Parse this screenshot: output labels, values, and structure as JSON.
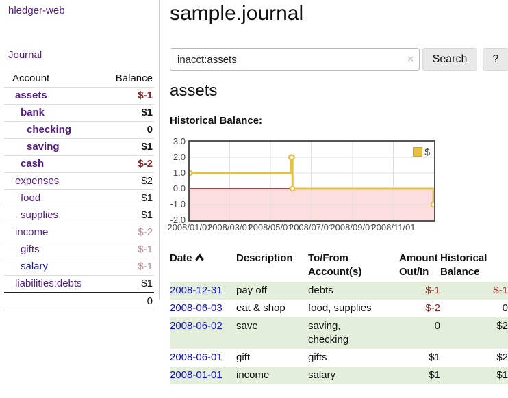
{
  "app": {
    "brand": "hledger-web"
  },
  "sidebar": {
    "nav": {
      "journal": "Journal"
    },
    "table": {
      "header": {
        "account": "Account",
        "balance": "Balance"
      },
      "rows": [
        {
          "name": "assets",
          "balance": "$-1"
        },
        {
          "name": "bank",
          "balance": "$1"
        },
        {
          "name": "checking",
          "balance": "0"
        },
        {
          "name": "saving",
          "balance": "$1"
        },
        {
          "name": "cash",
          "balance": "$-2"
        },
        {
          "name": "expenses",
          "balance": "$2"
        },
        {
          "name": "food",
          "balance": "$1"
        },
        {
          "name": "supplies",
          "balance": "$1"
        },
        {
          "name": "income",
          "balance": "$-2"
        },
        {
          "name": "gifts",
          "balance": "$-1"
        },
        {
          "name": "salary",
          "balance": "$-1"
        },
        {
          "name": "liabilities:debts",
          "balance": "$1"
        }
      ],
      "total": "0"
    }
  },
  "main": {
    "title": "sample.journal",
    "search": {
      "value": "inacct:assets",
      "clear": "×",
      "search_button": "Search",
      "help_button": "?"
    },
    "heading": "assets",
    "chart_label": "Historical Balance:"
  },
  "chart_data": {
    "type": "line",
    "step": true,
    "title": "Historical Balance",
    "x_range": [
      "2008-01-01",
      "2009-01-01"
    ],
    "ylim": [
      -2.0,
      3.0
    ],
    "yticks": [
      {
        "value": 3,
        "label": "3.0"
      },
      {
        "value": 2,
        "label": "2.0"
      },
      {
        "value": 1,
        "label": "1.0"
      },
      {
        "value": 0,
        "label": "0.0"
      },
      {
        "value": -1,
        "label": "-1.0"
      },
      {
        "value": -2,
        "label": "-2.0"
      }
    ],
    "ygrid": [
      2,
      1,
      -1
    ],
    "xticks": [
      {
        "date": "2008-01-01",
        "label": "2008/01/01"
      },
      {
        "date": "2008-03-01",
        "label": "2008/03/01"
      },
      {
        "date": "2008-05-01",
        "label": "2008/05/01"
      },
      {
        "date": "2008-07-01",
        "label": "2008/07/01"
      },
      {
        "date": "2008-09-01",
        "label": "2008/09/01"
      },
      {
        "date": "2008-11-01",
        "label": "2008/11/01"
      }
    ],
    "series": [
      {
        "name": "$",
        "color": "#e6c045",
        "points": [
          [
            "2008-01-01",
            1
          ],
          [
            "2008-06-01",
            2
          ],
          [
            "2008-06-02",
            2
          ],
          [
            "2008-06-03",
            0
          ],
          [
            "2008-12-31",
            -1
          ]
        ]
      }
    ],
    "legend": {
      "label": "$",
      "position": "top-right"
    },
    "colors": {
      "line": "#e6c045",
      "marker_fill": "#ffffff",
      "negative_fill": "#fcdede",
      "zero_line": "#8b0000",
      "grid": "#e0e0e0",
      "border": "#545454"
    }
  },
  "register": {
    "columns": [
      "Date",
      "Description",
      "To/From Account(s)",
      "Amount Out/In",
      "Historical Balance"
    ],
    "rows": [
      {
        "date": "2008-12-31",
        "description": "pay off",
        "accounts": "debts",
        "amount": "$-1",
        "balance": "$-1"
      },
      {
        "date": "2008-06-03",
        "description": "eat & shop",
        "accounts": "food, supplies",
        "amount": "$-2",
        "balance": "0"
      },
      {
        "date": "2008-06-02",
        "description": "save",
        "accounts": "saving, checking",
        "amount": "0",
        "balance": "$2"
      },
      {
        "date": "2008-06-01",
        "description": "gift",
        "accounts": "gifts",
        "amount": "$1",
        "balance": "$2"
      },
      {
        "date": "2008-01-01",
        "description": "income",
        "accounts": "salary",
        "amount": "$1",
        "balance": "$1"
      }
    ]
  },
  "colors": {
    "purple_link": "#551a8b",
    "blue_link": "#0f0fd8",
    "neg_strong": "#941f1f",
    "neg_weak": "#bd8d8d",
    "row_green": "#e3eedb"
  }
}
